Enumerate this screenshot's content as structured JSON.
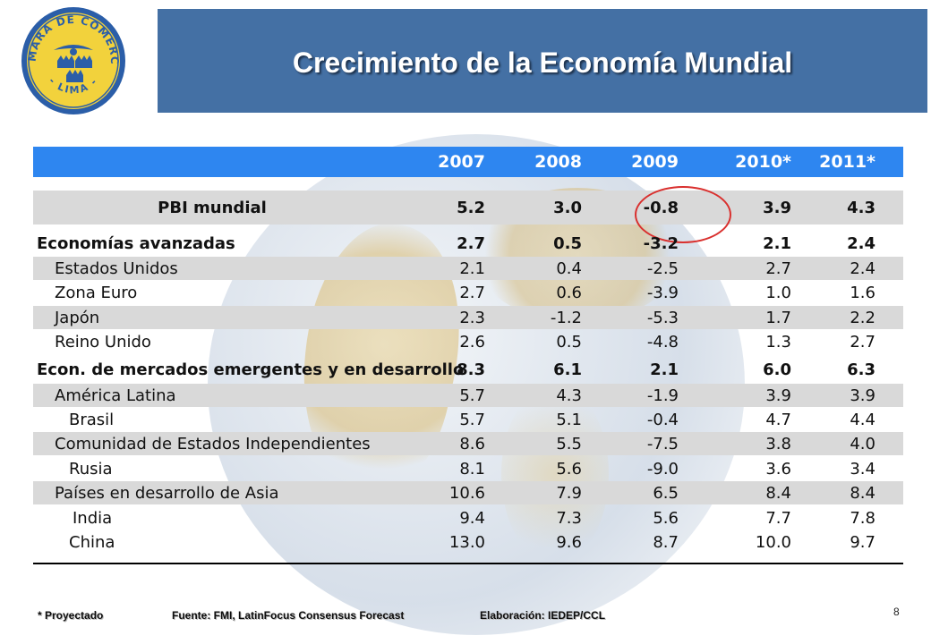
{
  "header": {
    "title": "Crecimiento de la Economía Mundial",
    "logo_text_top": "CAMARA DE COMERCIO",
    "logo_text_bottom": "- LIMA -"
  },
  "table": {
    "years": [
      "2007",
      "2008",
      "2009",
      "2010*",
      "2011*"
    ],
    "pbi": {
      "label": "PBI mundial",
      "values": [
        "5.2",
        "3.0",
        "-0.8",
        "3.9",
        "4.3"
      ]
    },
    "rows": [
      {
        "label": "Economías avanzadas",
        "values": [
          "2.7",
          "0.5",
          "-3.2",
          "2.1",
          "2.4"
        ],
        "bold": true,
        "shade": false,
        "indent": 0
      },
      {
        "label": "Estados Unidos",
        "values": [
          "2.1",
          "0.4",
          "-2.5",
          "2.7",
          "2.4"
        ],
        "bold": false,
        "shade": true,
        "indent": 1
      },
      {
        "label": "Zona Euro",
        "values": [
          "2.7",
          "0.6",
          "-3.9",
          "1.0",
          "1.6"
        ],
        "bold": false,
        "shade": false,
        "indent": 1
      },
      {
        "label": "Japón",
        "values": [
          "2.3",
          "-1.2",
          "-5.3",
          "1.7",
          "2.2"
        ],
        "bold": false,
        "shade": true,
        "indent": 1
      },
      {
        "label": "Reino Unido",
        "values": [
          "2.6",
          "0.5",
          "-4.8",
          "1.3",
          "2.7"
        ],
        "bold": false,
        "shade": false,
        "indent": 1
      },
      {
        "label": "Econ. de mercados emergentes y en desarrollo",
        "values": [
          "8.3",
          "6.1",
          "2.1",
          "6.0",
          "6.3"
        ],
        "bold": true,
        "shade": false,
        "indent": 0
      },
      {
        "label": "América Latina",
        "values": [
          "5.7",
          "4.3",
          "-1.9",
          "3.9",
          "3.9"
        ],
        "bold": false,
        "shade": true,
        "indent": 1
      },
      {
        "label": "Brasil",
        "values": [
          "5.7",
          "5.1",
          "-0.4",
          "4.7",
          "4.4"
        ],
        "bold": false,
        "shade": false,
        "indent": 2
      },
      {
        "label": "Comunidad de Estados Independientes",
        "values": [
          "8.6",
          "5.5",
          "-7.5",
          "3.8",
          "4.0"
        ],
        "bold": false,
        "shade": true,
        "indent": 1
      },
      {
        "label": "Rusia",
        "values": [
          "8.1",
          "5.6",
          "-9.0",
          "3.6",
          "3.4"
        ],
        "bold": false,
        "shade": false,
        "indent": 2
      },
      {
        "label": "Países en desarrollo de Asia",
        "values": [
          "10.6",
          "7.9",
          "6.5",
          "8.4",
          "8.4"
        ],
        "bold": false,
        "shade": true,
        "indent": 1
      },
      {
        "label": "India",
        "values": [
          "9.4",
          "7.3",
          "5.6",
          "7.7",
          "7.8"
        ],
        "bold": false,
        "shade": false,
        "indent": 3
      },
      {
        "label": "China",
        "values": [
          "13.0",
          "9.6",
          "8.7",
          "10.0",
          "9.7"
        ],
        "bold": false,
        "shade": false,
        "indent": 2
      }
    ]
  },
  "footer": {
    "projected": "* Proyectado",
    "source": "Fuente: FMI, LatinFocus Consensus Forecast",
    "credit": "Elaboración: IEDEP/CCL",
    "page_number": "8"
  },
  "colors": {
    "header_bg": "#4470a4",
    "table_header_bg": "#2e86f0",
    "row_shade": "#d9d9d9",
    "highlight_circle": "#d9302e"
  }
}
